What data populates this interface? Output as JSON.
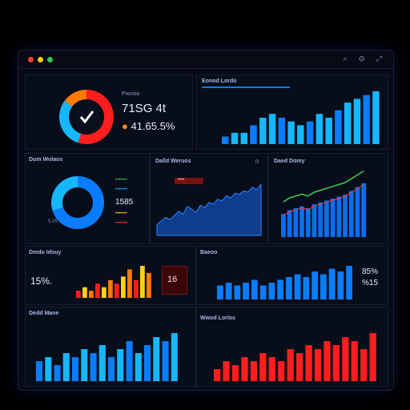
{
  "window": {
    "controls": [
      "close",
      "minimize",
      "maximize"
    ],
    "toolbar_icons": [
      "search-icon",
      "settings-icon",
      "expand-icon"
    ]
  },
  "colors": {
    "accent_blue": "#0a7dff",
    "cyan": "#16b7ff",
    "red": "#ff1e1e",
    "yellow": "#ffd21a",
    "green": "#39d353",
    "bg": "#070b16"
  },
  "kpi": {
    "title": "Pwvoio",
    "value": "71ЅG 4t",
    "delta": "41.65.5%"
  },
  "panels": {
    "top_right": {
      "title": "Eonod Lordo"
    },
    "donut_left": {
      "title": "Dum Wolaos",
      "legend": [
        "•••••••",
        "•••••••",
        "•••••••",
        "•••••••"
      ],
      "value_a": "1585",
      "value_b": "5.05"
    },
    "area_mid": {
      "title": "Dalld Weruos",
      "tooltip": "••••"
    },
    "combo_right": {
      "title": "Daed Domy"
    },
    "mini_bars": {
      "title": "Dmdo Idouy",
      "value": "15%.",
      "badge": "16"
    },
    "bars_mid": {
      "title": "Baeoo",
      "value_a": "85%",
      "value_b": "%15"
    },
    "bottom_left": {
      "title": "Dedd Mane"
    },
    "bottom_right": {
      "title": "Wwod Lorlos"
    }
  },
  "chart_data": [
    {
      "type": "bar",
      "id": "top_right",
      "values": [
        2,
        3,
        3,
        5,
        7,
        8,
        7,
        6,
        5,
        6,
        8,
        7,
        9,
        11,
        12,
        13,
        14
      ]
    },
    {
      "type": "pie",
      "id": "kpi_donut",
      "values": [
        55,
        30,
        15
      ]
    },
    {
      "type": "pie",
      "id": "donut_left",
      "values": [
        70,
        30
      ]
    },
    {
      "type": "area",
      "id": "area_mid",
      "values": [
        18,
        24,
        30,
        26,
        33,
        40,
        35,
        48,
        44,
        38,
        50,
        46,
        55,
        52,
        60,
        57,
        66,
        62,
        70,
        68,
        74,
        72,
        80,
        76,
        85
      ]
    },
    {
      "type": "bar",
      "id": "combo_right",
      "values": [
        12,
        14,
        15,
        16,
        15,
        17,
        18,
        19,
        20,
        21,
        22,
        24,
        26,
        28
      ]
    },
    {
      "type": "bar",
      "id": "mini_bars",
      "values": [
        2,
        3,
        2,
        4,
        3,
        5,
        4,
        6,
        8,
        5,
        9,
        7
      ]
    },
    {
      "type": "bar",
      "id": "bars_mid",
      "values": [
        5,
        6,
        5,
        6,
        7,
        5,
        6,
        7,
        8,
        9,
        8,
        10,
        9,
        11,
        10,
        12
      ]
    },
    {
      "type": "bar",
      "id": "bottom_left",
      "values": [
        5,
        6,
        4,
        7,
        6,
        8,
        7,
        9,
        6,
        8,
        10,
        7,
        9,
        11,
        10,
        12
      ]
    },
    {
      "type": "bar",
      "id": "bottom_right",
      "values": [
        3,
        5,
        4,
        6,
        5,
        7,
        6,
        5,
        8,
        7,
        9,
        8,
        10,
        9,
        11,
        10,
        8,
        12
      ]
    }
  ]
}
